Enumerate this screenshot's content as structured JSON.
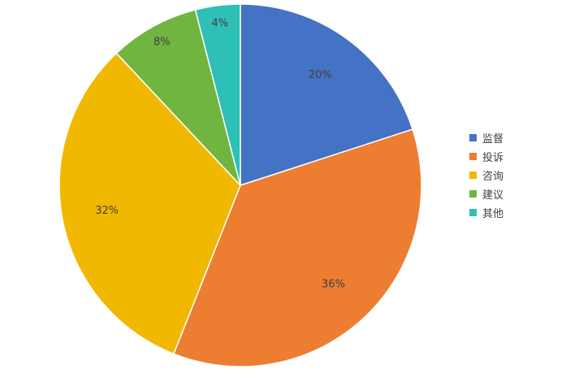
{
  "chart_data": {
    "type": "pie",
    "title": "",
    "legend_position": "right",
    "start_angle_deg": 0,
    "direction": "clockwise",
    "slices": [
      {
        "name": "监督",
        "value": 20,
        "label": "20%",
        "color": "#4472C4"
      },
      {
        "name": "投诉",
        "value": 36,
        "label": "36%",
        "color": "#ED7D31"
      },
      {
        "name": "咨询",
        "value": 32,
        "label": "32%",
        "color": "#F0B800"
      },
      {
        "name": "建议",
        "value": 8,
        "label": "8%",
        "color": "#70B53F"
      },
      {
        "name": "其他",
        "value": 4,
        "label": "4%",
        "color": "#2EC0B6"
      }
    ]
  }
}
